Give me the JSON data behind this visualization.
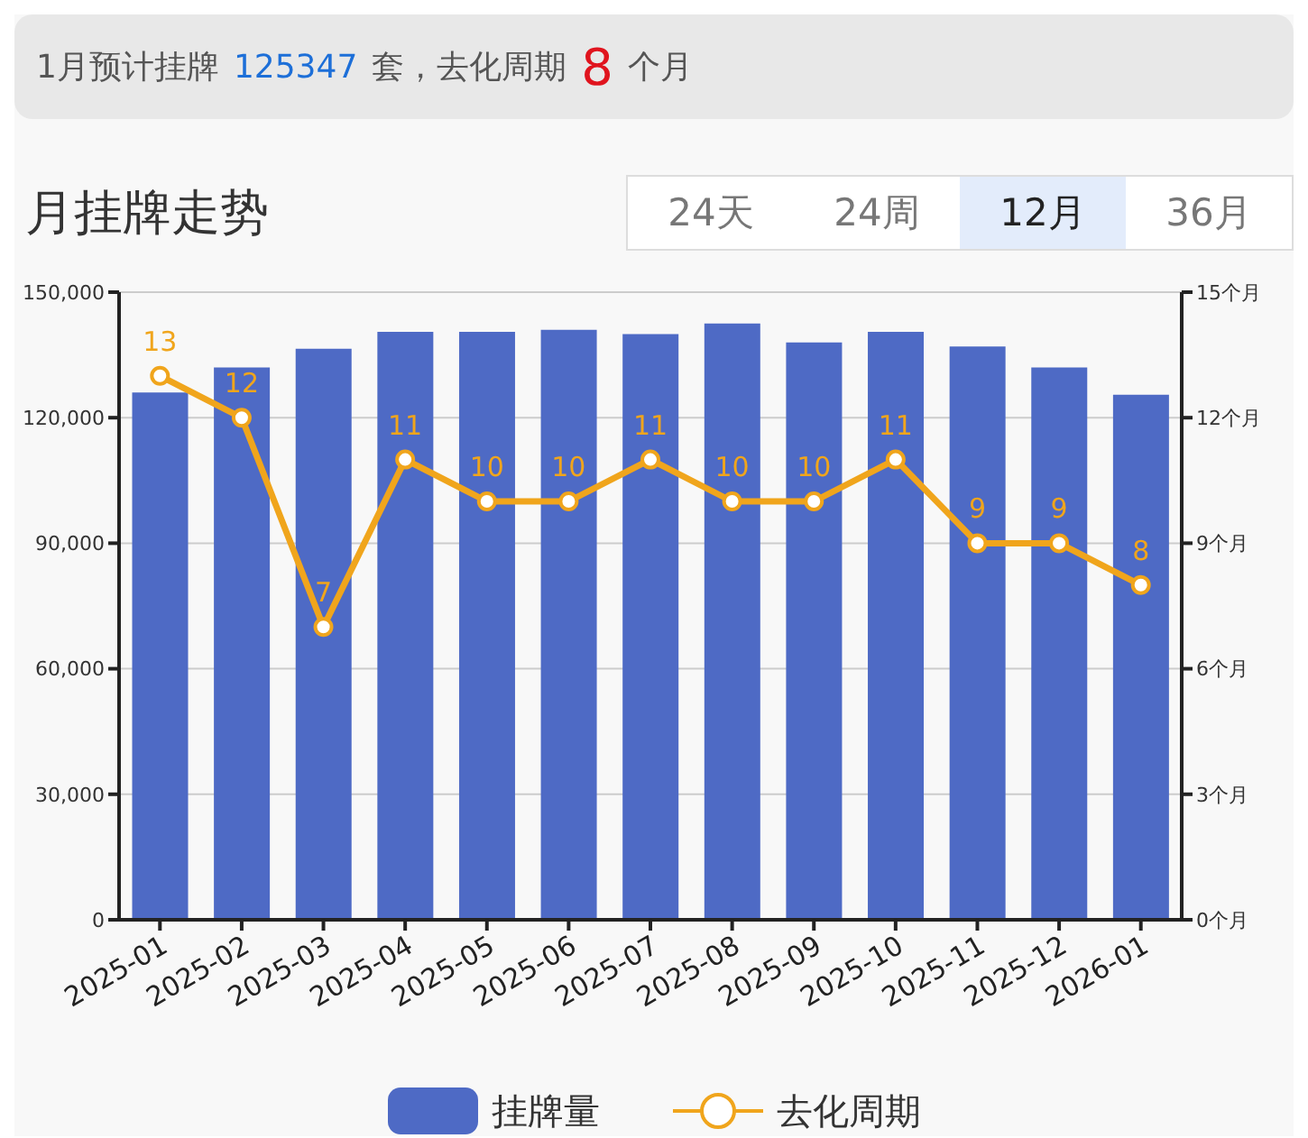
{
  "chart_data": {
    "type": "bar",
    "title": "月挂牌走势",
    "annotations": [
      "1月预计挂牌",
      "125347",
      "套，去化周期",
      "8",
      "个月",
      "24天",
      "24周",
      "12月",
      "36月"
    ],
    "categories": [
      "2025-01",
      "2025-02",
      "2025-03",
      "2025-04",
      "2025-05",
      "2025-06",
      "2025-07",
      "2025-08",
      "2025-09",
      "2025-10",
      "2025-11",
      "2025-12",
      "2026-01"
    ],
    "series": [
      {
        "name": "挂牌量",
        "color": "#4e6ac5",
        "values": [
          126000,
          132000,
          136500,
          140500,
          140500,
          141000,
          140000,
          142500,
          138000,
          140500,
          137000,
          132000,
          125500
        ]
      },
      {
        "name": "去化周期",
        "type": "line",
        "axis": "y2",
        "color": "#f0a51c",
        "marker": "circle",
        "data_labels": true,
        "values": [
          13,
          12,
          7,
          11,
          10,
          10,
          11,
          10,
          10,
          11,
          9,
          9,
          8
        ]
      }
    ],
    "ylim": [
      0,
      150000
    ],
    "yticks": [
      {
        "value": 0,
        "label": "0"
      },
      {
        "value": 30000,
        "label": "30,000"
      },
      {
        "value": 60000,
        "label": "60,000"
      },
      {
        "value": 90000,
        "label": "90,000"
      },
      {
        "value": 120000,
        "label": "120,000"
      },
      {
        "value": 150000,
        "label": "150,000"
      }
    ],
    "y2lim": [
      0,
      15
    ],
    "y2ticks": [
      {
        "value": 0,
        "label": "0个月"
      },
      {
        "value": 3,
        "label": "3个月"
      },
      {
        "value": 6,
        "label": "6个月"
      },
      {
        "value": 9,
        "label": "9个月"
      },
      {
        "value": 12,
        "label": "12个月"
      },
      {
        "value": 15,
        "label": "15个月"
      }
    ],
    "grid": "y",
    "legend": "bottom"
  }
}
